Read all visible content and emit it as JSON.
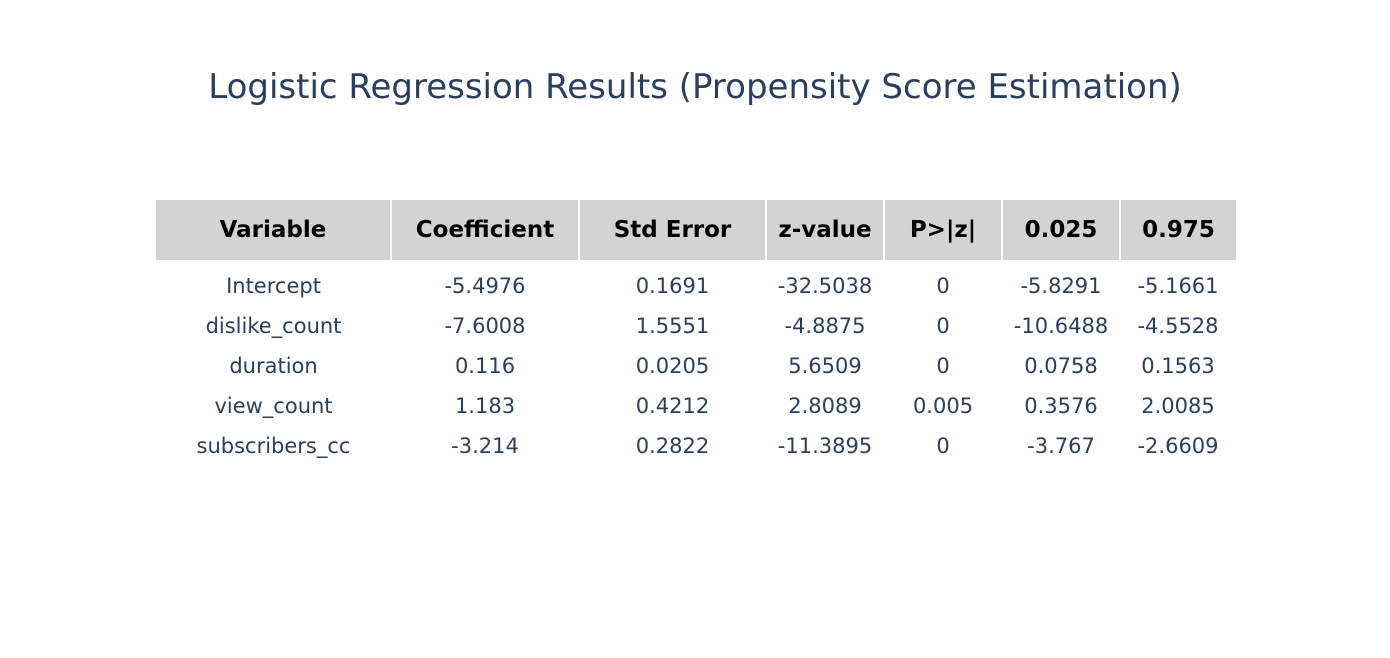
{
  "title": "Logistic Regression Results (Propensity Score Estimation)",
  "chart_data": {
    "type": "table",
    "title": "Logistic Regression Results (Propensity Score Estimation)",
    "columns": [
      "Variable",
      "Coefficient",
      "Std Error",
      "z-value",
      "P>|z|",
      "0.025",
      "0.975"
    ],
    "rows": [
      [
        "Intercept",
        "-5.4976",
        "0.1691",
        "-32.5038",
        "0",
        "-5.8291",
        "-5.1661"
      ],
      [
        "dislike_count",
        "-7.6008",
        "1.5551",
        "-4.8875",
        "0",
        "-10.6488",
        "-4.5528"
      ],
      [
        "duration",
        "0.116",
        "0.0205",
        "5.6509",
        "0",
        "0.0758",
        "0.1563"
      ],
      [
        "view_count",
        "1.183",
        "0.4212",
        "2.8089",
        "0.005",
        "0.3576",
        "2.0085"
      ],
      [
        "subscribers_cc",
        "-3.214",
        "0.2822",
        "-11.3895",
        "0",
        "-3.767",
        "-2.6609"
      ]
    ],
    "header_fill": "#d3d3d3",
    "header_text_color": "#000000",
    "cell_text_color": "#2a3f5f"
  }
}
